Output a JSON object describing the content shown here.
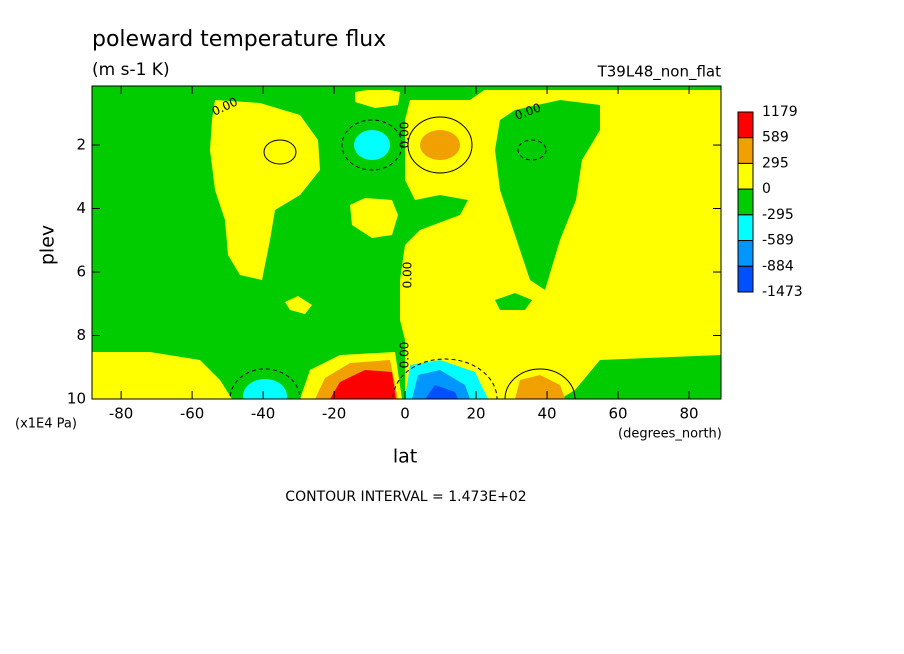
{
  "chart_data": {
    "type": "contour",
    "title": "poleward temperature flux",
    "units": "(m s-1 K)",
    "subtitle": "T39L48_non_flat",
    "x_label": "lat",
    "y_label": "plev",
    "x_units": "(degrees_north)",
    "y_units": "(x1E4 Pa)",
    "xlim": [
      -88.2,
      89
    ],
    "xticks": [
      -80,
      -60,
      -40,
      -20,
      0,
      20,
      40,
      60,
      80
    ],
    "ylim": [
      0.14,
      10
    ],
    "yticks": [
      2,
      4,
      6,
      8,
      10
    ],
    "contour_labels": [
      "0.00",
      "0.00",
      "0.00",
      "0.00",
      "0.00"
    ],
    "footnote": "CONTOUR INTERVAL = 1.473E+02",
    "colorbar": {
      "levels": [
        1179,
        589,
        295,
        0,
        -295,
        -589,
        -884,
        -1473
      ],
      "colors": [
        "#ff0000",
        "#f0a000",
        "#ffff00",
        "#00cc00",
        "#00ffff",
        "#0096ff",
        "#0050ff"
      ]
    }
  }
}
